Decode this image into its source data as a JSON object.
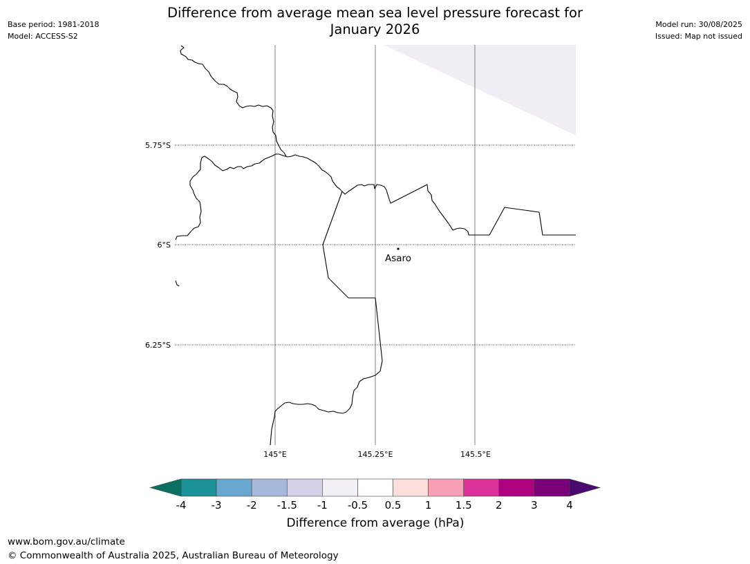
{
  "title": {
    "line1": "Difference from average mean sea level pressure forecast for",
    "line2": "January 2026"
  },
  "meta_left": {
    "base_period": "Base period: 1981-2018",
    "model": "Model: ACCESS-S2"
  },
  "meta_right": {
    "model_run": "Model run: 30/08/2025",
    "issued": "Issued: Map not issued"
  },
  "map": {
    "lat_labels": [
      "5.75°S",
      "6°S",
      "6.25°S"
    ],
    "lon_labels": [
      "145°E",
      "145.25°E",
      "145.5°E"
    ],
    "place": {
      "name": "Asaro"
    },
    "shaded_category": "-0.5 to 0.5 (light lavender)",
    "colors": {
      "coast": "#000000",
      "meridian": "#808080",
      "shade": "#f2edf5"
    }
  },
  "colorbar": {
    "label": "Difference from average (hPa)",
    "ticks": [
      "-4",
      "-3",
      "-2",
      "-1.5",
      "-1",
      "-0.5",
      "0.5",
      "1",
      "1.5",
      "2",
      "3",
      "4"
    ],
    "under_color": "#0a7060",
    "over_color": "#4a0a70",
    "colors": [
      "#1b9096",
      "#68a7cf",
      "#a7b9db",
      "#d3d0e7",
      "#f4eef6",
      "#ffffff",
      "#ffdede",
      "#f99fb5",
      "#db3399",
      "#ae0180",
      "#7a0178"
    ]
  },
  "footer": {
    "url": "www.bom.gov.au/climate",
    "copyright": "© Commonwealth of Australia 2025, Australian Bureau of Meteorology"
  }
}
